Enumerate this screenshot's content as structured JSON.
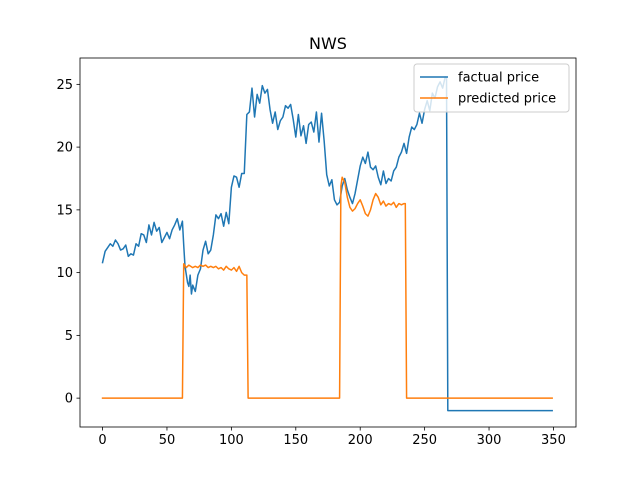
{
  "chart_data": {
    "type": "line",
    "title": "NWS",
    "xlabel": "",
    "ylabel": "",
    "xlim": [
      -17.5,
      367.5
    ],
    "ylim": [
      -2.3,
      27.1
    ],
    "x_ticks": [
      0,
      50,
      100,
      150,
      200,
      250,
      300,
      350
    ],
    "y_ticks": [
      0,
      5,
      10,
      15,
      20,
      25
    ],
    "grid": false,
    "legend_position": "top-right",
    "series": [
      {
        "name": "factual price",
        "color": "#1f77b4",
        "points": [
          [
            0,
            10.8
          ],
          [
            2,
            11.7
          ],
          [
            4,
            12.0
          ],
          [
            6,
            12.3
          ],
          [
            8,
            12.1
          ],
          [
            10,
            12.6
          ],
          [
            12,
            12.3
          ],
          [
            14,
            11.8
          ],
          [
            16,
            11.9
          ],
          [
            18,
            12.2
          ],
          [
            20,
            11.3
          ],
          [
            22,
            11.5
          ],
          [
            24,
            11.4
          ],
          [
            26,
            12.3
          ],
          [
            28,
            12.1
          ],
          [
            30,
            13.1
          ],
          [
            32,
            13.0
          ],
          [
            34,
            12.4
          ],
          [
            36,
            13.8
          ],
          [
            38,
            13.0
          ],
          [
            40,
            14.0
          ],
          [
            42,
            13.3
          ],
          [
            44,
            13.6
          ],
          [
            46,
            12.4
          ],
          [
            48,
            12.8
          ],
          [
            50,
            13.2
          ],
          [
            52,
            12.7
          ],
          [
            54,
            13.4
          ],
          [
            56,
            13.8
          ],
          [
            58,
            14.3
          ],
          [
            60,
            13.4
          ],
          [
            62,
            14.1
          ],
          [
            63,
            12.2
          ],
          [
            64,
            10.5
          ],
          [
            66,
            9.2
          ],
          [
            67,
            8.9
          ],
          [
            68,
            9.8
          ],
          [
            69,
            8.3
          ],
          [
            70,
            9.0
          ],
          [
            72,
            8.5
          ],
          [
            74,
            9.8
          ],
          [
            76,
            10.3
          ],
          [
            78,
            11.8
          ],
          [
            80,
            12.5
          ],
          [
            82,
            11.5
          ],
          [
            84,
            11.8
          ],
          [
            86,
            13.0
          ],
          [
            88,
            14.6
          ],
          [
            90,
            14.3
          ],
          [
            92,
            14.7
          ],
          [
            94,
            13.7
          ],
          [
            96,
            14.8
          ],
          [
            98,
            13.9
          ],
          [
            100,
            16.8
          ],
          [
            102,
            17.7
          ],
          [
            104,
            17.6
          ],
          [
            106,
            16.8
          ],
          [
            108,
            17.9
          ],
          [
            110,
            17.9
          ],
          [
            112,
            22.6
          ],
          [
            114,
            22.8
          ],
          [
            116,
            24.7
          ],
          [
            118,
            22.4
          ],
          [
            120,
            24.2
          ],
          [
            122,
            23.5
          ],
          [
            124,
            24.9
          ],
          [
            126,
            24.3
          ],
          [
            128,
            24.6
          ],
          [
            130,
            23.0
          ],
          [
            132,
            21.9
          ],
          [
            134,
            22.8
          ],
          [
            136,
            21.4
          ],
          [
            138,
            22.1
          ],
          [
            140,
            22.4
          ],
          [
            142,
            23.3
          ],
          [
            144,
            23.1
          ],
          [
            146,
            23.4
          ],
          [
            148,
            22.2
          ],
          [
            150,
            20.8
          ],
          [
            152,
            22.6
          ],
          [
            154,
            20.9
          ],
          [
            156,
            21.7
          ],
          [
            158,
            20.3
          ],
          [
            160,
            21.8
          ],
          [
            162,
            22.0
          ],
          [
            164,
            21.2
          ],
          [
            166,
            22.8
          ],
          [
            168,
            20.4
          ],
          [
            170,
            22.7
          ],
          [
            172,
            20.5
          ],
          [
            174,
            17.8
          ],
          [
            176,
            16.9
          ],
          [
            178,
            17.4
          ],
          [
            180,
            15.8
          ],
          [
            182,
            15.4
          ],
          [
            184,
            15.6
          ],
          [
            186,
            16.9
          ],
          [
            188,
            17.5
          ],
          [
            190,
            16.6
          ],
          [
            192,
            16.0
          ],
          [
            194,
            15.5
          ],
          [
            196,
            16.3
          ],
          [
            198,
            17.4
          ],
          [
            200,
            18.5
          ],
          [
            202,
            19.2
          ],
          [
            204,
            18.7
          ],
          [
            206,
            19.6
          ],
          [
            208,
            18.4
          ],
          [
            210,
            18.2
          ],
          [
            212,
            18.5
          ],
          [
            214,
            17.6
          ],
          [
            216,
            17.0
          ],
          [
            218,
            18.1
          ],
          [
            220,
            17.1
          ],
          [
            222,
            17.5
          ],
          [
            224,
            17.3
          ],
          [
            226,
            18.1
          ],
          [
            228,
            18.4
          ],
          [
            230,
            19.2
          ],
          [
            232,
            19.6
          ],
          [
            234,
            20.3
          ],
          [
            236,
            19.5
          ],
          [
            238,
            20.8
          ],
          [
            240,
            21.6
          ],
          [
            242,
            21.4
          ],
          [
            244,
            21.8
          ],
          [
            246,
            22.7
          ],
          [
            248,
            21.9
          ],
          [
            250,
            23.0
          ],
          [
            252,
            23.7
          ],
          [
            254,
            22.9
          ],
          [
            256,
            24.3
          ],
          [
            258,
            23.9
          ],
          [
            260,
            24.8
          ],
          [
            262,
            25.2
          ],
          [
            264,
            24.7
          ],
          [
            266,
            25.6
          ],
          [
            267,
            25.5
          ],
          [
            268,
            -1.0
          ],
          [
            349,
            -1.0
          ]
        ]
      },
      {
        "name": "predicted price",
        "color": "#ff7f0e",
        "points": [
          [
            0,
            0.0
          ],
          [
            61,
            0.0
          ],
          [
            62,
            0.0
          ],
          [
            63,
            10.7
          ],
          [
            65,
            10.4
          ],
          [
            67,
            10.6
          ],
          [
            70,
            10.4
          ],
          [
            72,
            10.5
          ],
          [
            74,
            10.4
          ],
          [
            76,
            10.6
          ],
          [
            78,
            10.5
          ],
          [
            80,
            10.6
          ],
          [
            82,
            10.4
          ],
          [
            84,
            10.5
          ],
          [
            86,
            10.4
          ],
          [
            88,
            10.5
          ],
          [
            90,
            10.3
          ],
          [
            92,
            10.4
          ],
          [
            94,
            10.2
          ],
          [
            96,
            10.5
          ],
          [
            98,
            10.3
          ],
          [
            100,
            10.2
          ],
          [
            102,
            10.4
          ],
          [
            104,
            10.1
          ],
          [
            106,
            10.5
          ],
          [
            108,
            10.0
          ],
          [
            110,
            9.8
          ],
          [
            112,
            9.8
          ],
          [
            113,
            0.0
          ],
          [
            184,
            0.0
          ],
          [
            185,
            16.9
          ],
          [
            186,
            17.6
          ],
          [
            188,
            17.2
          ],
          [
            190,
            16.0
          ],
          [
            192,
            15.2
          ],
          [
            194,
            14.9
          ],
          [
            196,
            15.1
          ],
          [
            198,
            15.5
          ],
          [
            200,
            15.8
          ],
          [
            202,
            15.3
          ],
          [
            204,
            14.7
          ],
          [
            206,
            14.5
          ],
          [
            208,
            15.0
          ],
          [
            210,
            15.8
          ],
          [
            212,
            16.3
          ],
          [
            214,
            16.0
          ],
          [
            216,
            15.4
          ],
          [
            218,
            15.7
          ],
          [
            220,
            15.3
          ],
          [
            222,
            15.5
          ],
          [
            224,
            15.4
          ],
          [
            226,
            15.6
          ],
          [
            228,
            15.2
          ],
          [
            230,
            15.5
          ],
          [
            232,
            15.4
          ],
          [
            234,
            15.5
          ],
          [
            235,
            15.5
          ],
          [
            236,
            0.0
          ],
          [
            349,
            0.0
          ]
        ]
      }
    ]
  }
}
